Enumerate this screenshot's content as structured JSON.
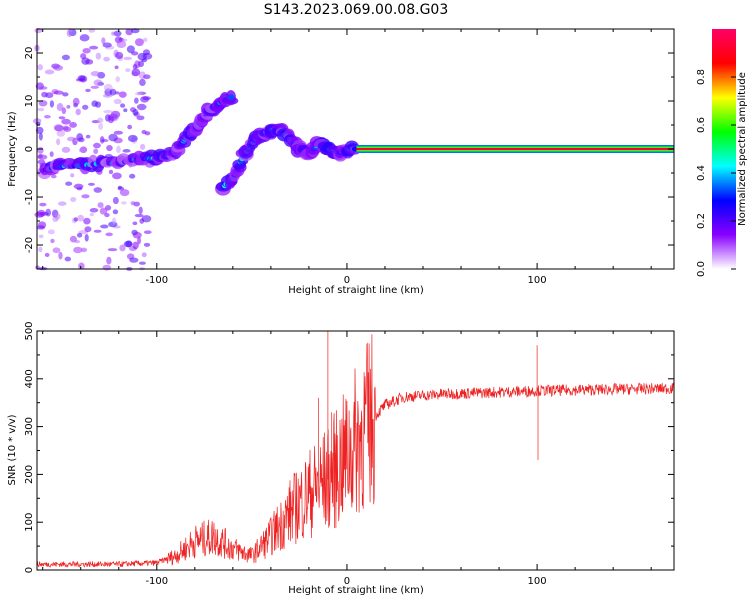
{
  "title": "S143.2023.069.00.08.G03",
  "chart_data": [
    {
      "type": "heatmap",
      "xlabel": "Height of straight line (km)",
      "ylabel": "Frequency (Hz)",
      "xlim": [
        -163,
        172
      ],
      "ylim": [
        -25,
        25
      ],
      "xticks": [
        -100,
        0,
        100
      ],
      "yticks": [
        -20,
        -10,
        0,
        10,
        20
      ],
      "colorbar": {
        "label": "Normalized spectral amplitude",
        "range": [
          0,
          1
        ],
        "ticks": [
          "0.0",
          "0.2",
          "0.4",
          "0.6",
          "0.8"
        ],
        "colormap": [
          "#ffffff",
          "#8800ff",
          "#0000ff",
          "#00ffff",
          "#00ff00",
          "#ffff00",
          "#ff0000",
          "#ff0066"
        ]
      },
      "ridge": [
        {
          "x": -160,
          "y": -4.5
        },
        {
          "x": -150,
          "y": -3.5
        },
        {
          "x": -140,
          "y": -3.5
        },
        {
          "x": -130,
          "y": -3
        },
        {
          "x": -120,
          "y": -3
        },
        {
          "x": -110,
          "y": -2
        },
        {
          "x": -100,
          "y": -2
        },
        {
          "x": -95,
          "y": -1.5
        },
        {
          "x": -90,
          "y": 0
        },
        {
          "x": -85,
          "y": 2
        },
        {
          "x": -80,
          "y": 4
        },
        {
          "x": -75,
          "y": 7
        },
        {
          "x": -70,
          "y": 9
        },
        {
          "x": -65,
          "y": 10
        },
        {
          "x": -60,
          "y": 11
        }
      ],
      "ridge2": [
        {
          "x": -65,
          "y": -8
        },
        {
          "x": -60,
          "y": -6
        },
        {
          "x": -55,
          "y": -2
        },
        {
          "x": -50,
          "y": 1
        },
        {
          "x": -45,
          "y": 3
        },
        {
          "x": -40,
          "y": 4
        },
        {
          "x": -35,
          "y": 4
        },
        {
          "x": -30,
          "y": 2
        },
        {
          "x": -25,
          "y": 0
        },
        {
          "x": -20,
          "y": -1
        },
        {
          "x": -15,
          "y": 1
        },
        {
          "x": -10,
          "y": 0
        },
        {
          "x": -5,
          "y": -1
        },
        {
          "x": 0,
          "y": 0
        },
        {
          "x": 5,
          "y": 0
        }
      ],
      "steady_line": {
        "y": 0,
        "x_start": 5,
        "x_end": 172
      }
    },
    {
      "type": "line",
      "xlabel": "Height of straight line (km)",
      "ylabel": "SNR (10 * v/v)",
      "xlim": [
        -163,
        172
      ],
      "ylim": [
        0,
        500
      ],
      "xticks": [
        -100,
        0,
        100
      ],
      "yticks": [
        0,
        100,
        200,
        300,
        400,
        500
      ],
      "color": "#ee2222",
      "trend": [
        {
          "x": -163,
          "y": 12
        },
        {
          "x": -120,
          "y": 12
        },
        {
          "x": -100,
          "y": 15
        },
        {
          "x": -90,
          "y": 30
        },
        {
          "x": -80,
          "y": 60
        },
        {
          "x": -70,
          "y": 70
        },
        {
          "x": -60,
          "y": 45
        },
        {
          "x": -50,
          "y": 30
        },
        {
          "x": -40,
          "y": 70
        },
        {
          "x": -30,
          "y": 120
        },
        {
          "x": -20,
          "y": 160
        },
        {
          "x": -10,
          "y": 190
        },
        {
          "x": 0,
          "y": 240
        },
        {
          "x": 10,
          "y": 300
        },
        {
          "x": 20,
          "y": 345
        },
        {
          "x": 30,
          "y": 362
        },
        {
          "x": 50,
          "y": 368
        },
        {
          "x": 80,
          "y": 372
        },
        {
          "x": 100,
          "y": 375
        },
        {
          "x": 140,
          "y": 378
        },
        {
          "x": 172,
          "y": 380
        }
      ],
      "spikes": [
        {
          "x": -10,
          "y": 500
        },
        {
          "x": -15,
          "y": 360
        },
        {
          "x": -8,
          "y": 330
        },
        {
          "x": 100,
          "y": 470
        },
        {
          "x": 100.5,
          "y": 230
        }
      ]
    }
  ]
}
